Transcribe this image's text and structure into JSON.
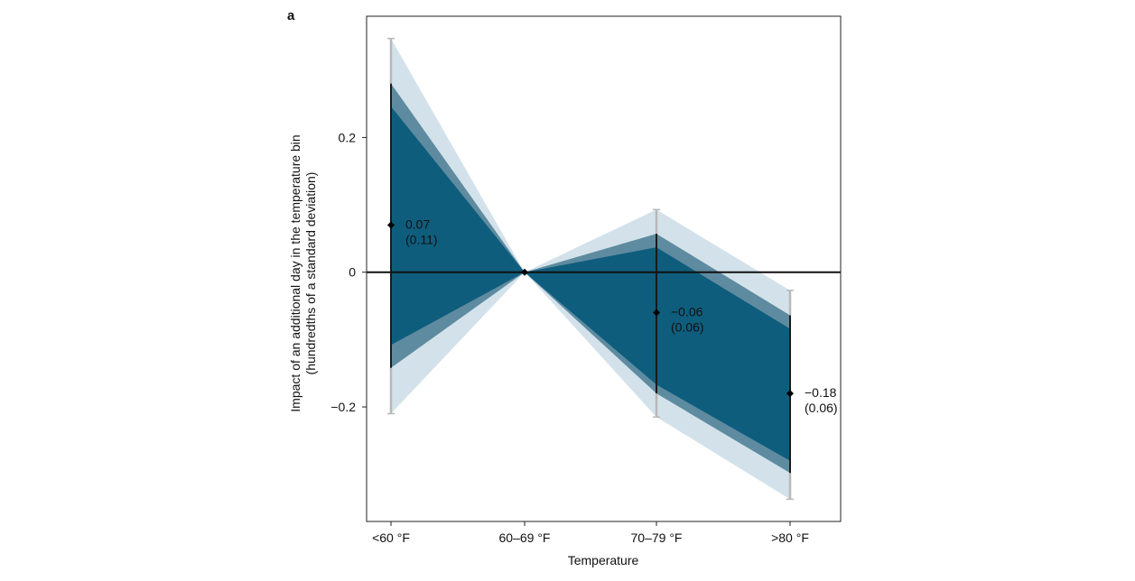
{
  "panel_label": "a",
  "chart_data": {
    "type": "line",
    "title": "",
    "xlabel": "Temperature",
    "ylabel_lines": [
      "Impact of an additional day in the temperature bin",
      "(hundredths of a standard deviation)"
    ],
    "categories": [
      "<60 °F",
      "60–69 °F",
      "70–79 °F",
      ">80 °F"
    ],
    "yticks": [
      {
        "value": 0.2,
        "label": "0.2"
      },
      {
        "value": 0,
        "label": "0"
      },
      {
        "value": -0.2,
        "label": "−0.2"
      }
    ],
    "ylim": [
      -0.37,
      0.38
    ],
    "grid": false,
    "reference_line": 0,
    "series": [
      {
        "values": [
          0.07,
          0,
          -0.06,
          -0.18
        ],
        "ci_outer": {
          "lower": [
            -0.21,
            0,
            -0.215,
            -0.337
          ],
          "upper": [
            0.347,
            0,
            0.093,
            -0.027
          ]
        },
        "ci_middle": {
          "lower": [
            -0.142,
            0,
            -0.18,
            -0.298
          ],
          "upper": [
            0.28,
            0,
            0.057,
            -0.064
          ]
        },
        "ci_inner": {
          "lower": [
            -0.108,
            0,
            -0.167,
            -0.28
          ],
          "upper": [
            0.246,
            0,
            0.037,
            -0.084
          ]
        }
      }
    ],
    "annotations": [
      {
        "category_index": 0,
        "estimate": "0.07",
        "se": "(0.11)"
      },
      {
        "category_index": 2,
        "estimate": "−0.06",
        "se": "(0.06)"
      },
      {
        "category_index": 3,
        "estimate": "−0.18",
        "se": "(0.06)"
      }
    ],
    "colors": {
      "outer_band": "#d3e2ea",
      "middle_band": "#5e8ba0",
      "inner_band": "#0f5d7d",
      "whisker_cap": "#b8b8b8",
      "line": "#111111"
    }
  }
}
